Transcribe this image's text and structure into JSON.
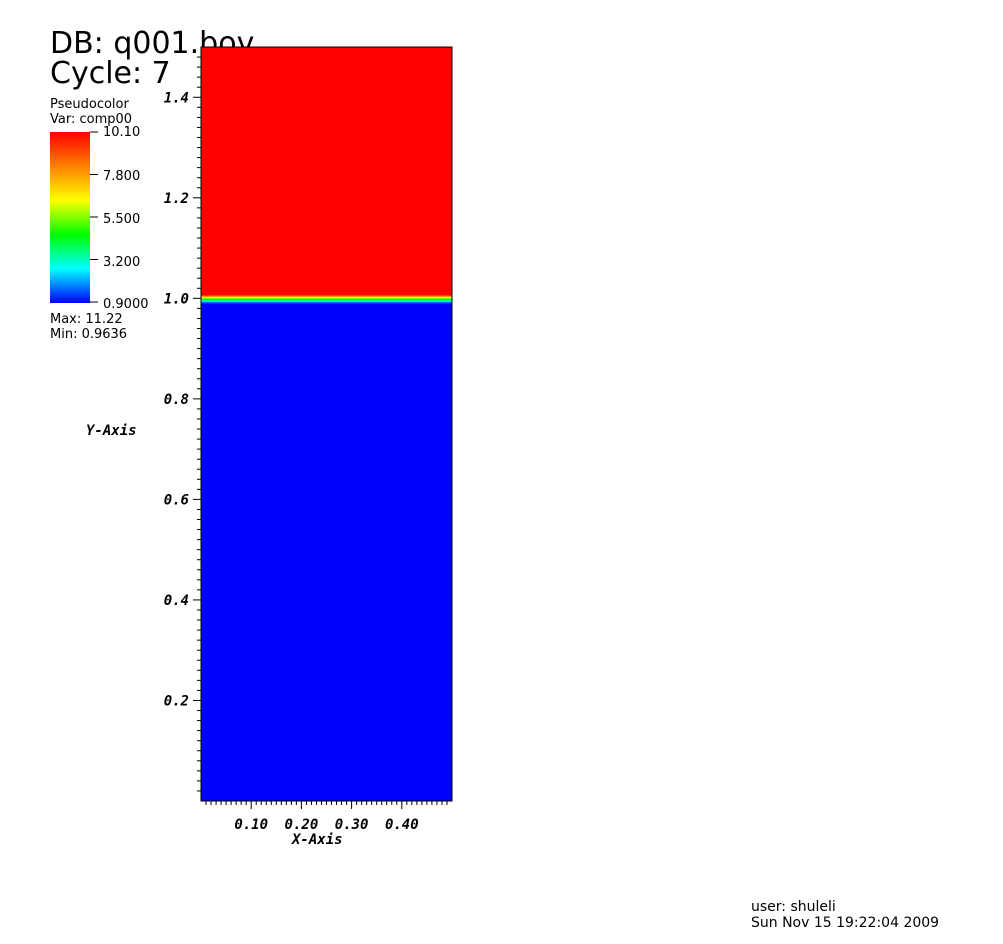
{
  "header": {
    "db": "DB: q001.bov",
    "cycle": "Cycle: 7"
  },
  "legend": {
    "plot_type": "Pseudocolor",
    "variable": "Var: comp00",
    "labels": [
      "10.10",
      "7.800",
      "5.500",
      "3.200",
      "0.9000"
    ],
    "max": "Max:  11.22",
    "min": "Min:  0.9636",
    "colormap": [
      "#ff0000",
      "#ff8000",
      "#ffff00",
      "#00ff00",
      "#00ffff",
      "#0000ff"
    ]
  },
  "footer": {
    "user": "user: shuleli",
    "timestamp": "Sun Nov 15 19:22:04 2009"
  },
  "chart_data": {
    "type": "heatmap",
    "title": "",
    "xlabel": "X-Axis",
    "ylabel": "Y-Axis",
    "xlim": [
      0.0,
      0.5
    ],
    "ylim": [
      0.0,
      1.5
    ],
    "x_ticks": [
      "0.10",
      "0.20",
      "0.30",
      "0.40"
    ],
    "x_tick_values": [
      0.1,
      0.2,
      0.3,
      0.4
    ],
    "y_ticks": [
      "1.4",
      "1.2",
      "1.0",
      "0.8",
      "0.6",
      "0.4",
      "0.2"
    ],
    "y_tick_values": [
      1.4,
      1.2,
      1.0,
      0.8,
      0.6,
      0.4,
      0.2
    ],
    "field": {
      "interface_y": 1.0,
      "value_above": 10.1,
      "value_below": 0.9636,
      "color_above": "#ff0000",
      "color_below": "#0000ff"
    }
  }
}
